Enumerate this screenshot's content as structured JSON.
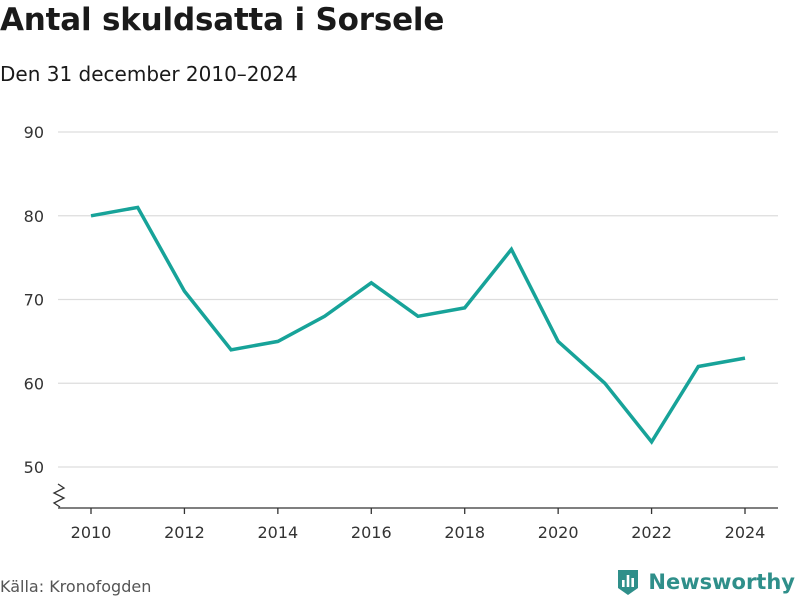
{
  "header": {
    "title": "Antal skuldsatta i Sorsele",
    "subtitle": "Den 31 december 2010–2024"
  },
  "footer": {
    "source": "Källa: Kronofogden",
    "brand": "Newsworthy",
    "brand_color": "#2f8f8a"
  },
  "chart_data": {
    "type": "line",
    "title": "Antal skuldsatta i Sorsele",
    "subtitle": "Den 31 december 2010–2024",
    "xlabel": "",
    "ylabel": "",
    "x": [
      2010,
      2011,
      2012,
      2013,
      2014,
      2015,
      2016,
      2017,
      2018,
      2019,
      2020,
      2021,
      2022,
      2023,
      2024
    ],
    "series": [
      {
        "values": [
          80,
          81,
          71,
          64,
          65,
          68,
          72,
          68,
          69,
          76,
          65,
          60,
          53,
          62,
          63
        ],
        "color": "#17a399"
      }
    ],
    "x_ticks": [
      "2010",
      "2012",
      "2014",
      "2016",
      "2018",
      "2020",
      "2022",
      "2024"
    ],
    "y_ticks": [
      "50",
      "60",
      "70",
      "80",
      "90"
    ],
    "xlim": [
      2010,
      2024
    ],
    "ylim": [
      50,
      90
    ],
    "y_axis_break": true,
    "grid": "horizontal",
    "gridline_color": "#dddddd"
  }
}
